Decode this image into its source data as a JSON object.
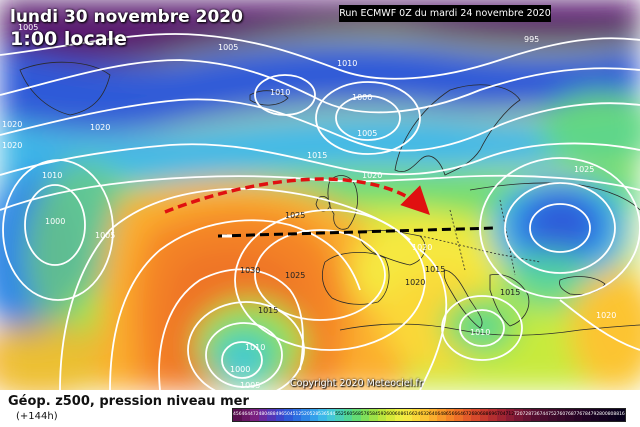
{
  "header": {
    "date_title": "lundi 30 novembre 2020",
    "time_title": "1:00 locale",
    "run_info": "Run ECMWF 0Z du mardi 24 novembre 2020",
    "copyright": "Copyright 2020 Meteociel.fr"
  },
  "footer": {
    "title": "Géop. z500, pression niveau mer",
    "subtitle": "(+144h)"
  },
  "isobar_labels": [
    "1005",
    "1010",
    "1010",
    "1005",
    "1000",
    "995",
    "1020",
    "1020",
    "1010",
    "1000",
    "1005",
    "1015",
    "1020",
    "1030",
    "1025",
    "1025",
    "1020",
    "1015",
    "1015",
    "1010",
    "1020",
    "1025",
    "1005",
    "1010",
    "1000",
    "1005",
    "1015",
    "1020",
    "1020"
  ],
  "color_scale": {
    "values": [
      "456",
      "464",
      "472",
      "480",
      "488",
      "496",
      "504",
      "512",
      "520",
      "528",
      "536",
      "544",
      "552",
      "560",
      "568",
      "576",
      "584",
      "592",
      "600",
      "608",
      "616",
      "624",
      "632",
      "640",
      "648",
      "656",
      "664",
      "672",
      "680",
      "688",
      "696",
      "704",
      "712",
      "720",
      "728",
      "736",
      "744",
      "752",
      "760",
      "768",
      "776",
      "784",
      "792",
      "800",
      "808",
      "816"
    ],
    "colors": [
      "#5a1050",
      "#6a1866",
      "#7a2080",
      "#6a2aa0",
      "#5236b8",
      "#3c46cc",
      "#2e5ad8",
      "#2c6ee0",
      "#2e86e6",
      "#34a0ea",
      "#3cb8e8",
      "#44c8d8",
      "#4ad0b8",
      "#52d696",
      "#64dc74",
      "#80e05a",
      "#9ee248",
      "#bce63e",
      "#d6ea3a",
      "#ecee40",
      "#f6e840",
      "#fad838",
      "#fcc432",
      "#fbae2e",
      "#f8982a",
      "#f48428",
      "#ee7028",
      "#e45c2a",
      "#d84a2c",
      "#c63a2e",
      "#b42e30",
      "#a02432",
      "#8c1c34",
      "#781634",
      "#661232",
      "#560e30",
      "#4a0c2e",
      "#400a2c",
      "#38082a",
      "#300628",
      "#280426",
      "#200324",
      "#1a0222",
      "#140120",
      "#0e011e",
      "#08001c"
    ]
  }
}
